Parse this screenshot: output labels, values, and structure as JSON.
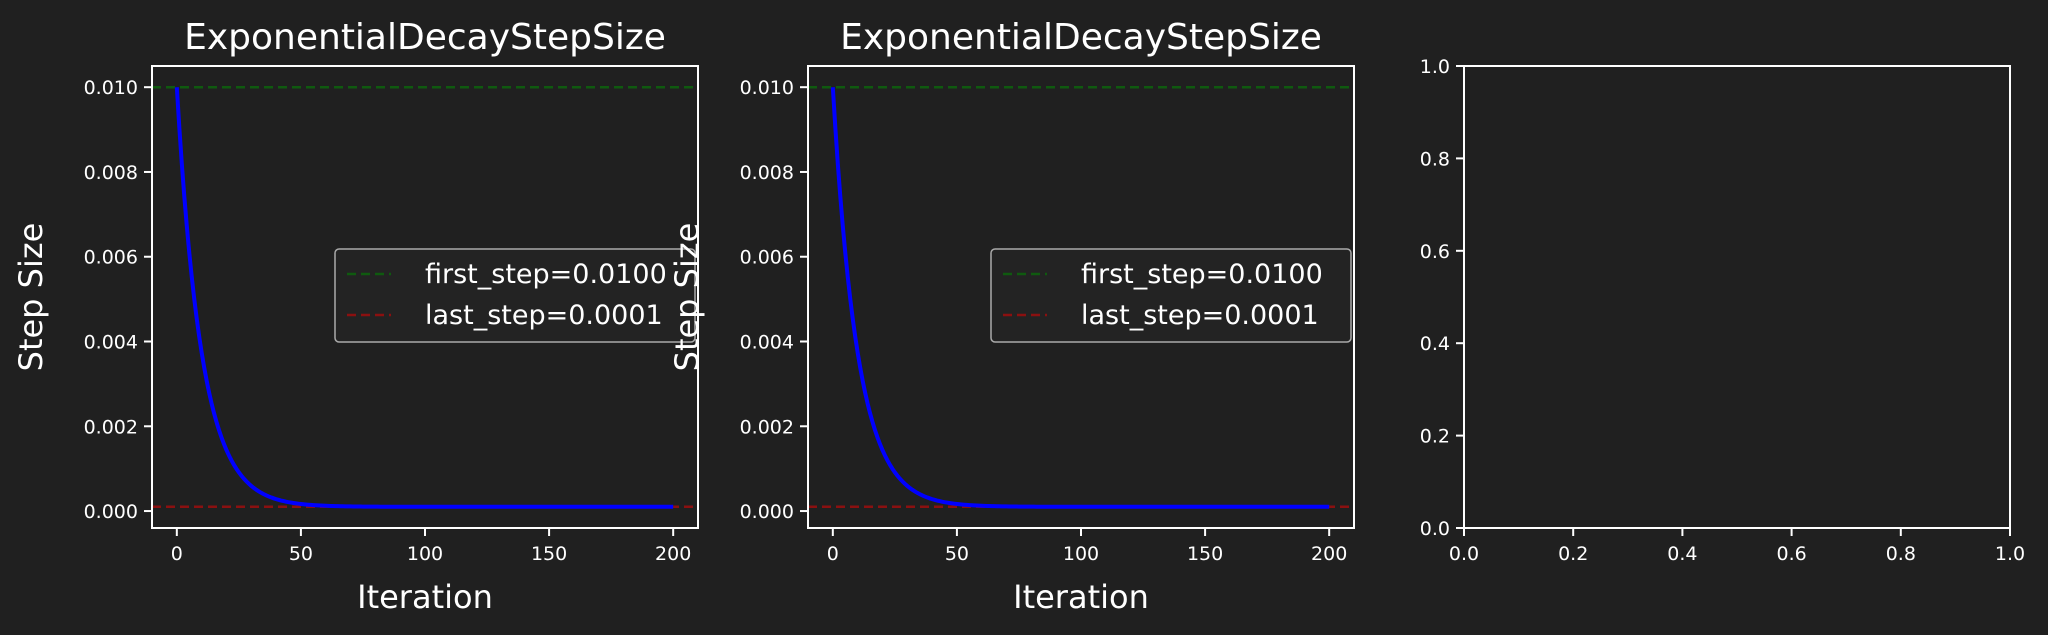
{
  "colors": {
    "background": "#202020",
    "axes": "#ffffff",
    "curve": "#0000ff",
    "first_line": "#0f5a0f",
    "last_line": "#8b1010",
    "legend_bg": "#232323",
    "legend_border": "#aaaaaa"
  },
  "chart_data": [
    {
      "type": "line",
      "title": "ExponentialDecayStepSize",
      "xlabel": "Iteration",
      "ylabel": "Step Size",
      "xlim": [
        -10,
        210
      ],
      "ylim": [
        -0.0004,
        0.0105
      ],
      "xticks": [
        0,
        50,
        100,
        150,
        200
      ],
      "xtick_labels": [
        "0",
        "50",
        "100",
        "150",
        "200"
      ],
      "yticks": [
        0.0,
        0.002,
        0.004,
        0.006,
        0.008,
        0.01
      ],
      "ytick_labels": [
        "0.000",
        "0.002",
        "0.004",
        "0.006",
        "0.008",
        "0.010"
      ],
      "series": [
        {
          "kind": "exponential_decay",
          "x_range": [
            0,
            200
          ],
          "first_step": 0.01,
          "last_step": 0.0001,
          "decay_rate": 0.1,
          "color": "#0000ff"
        }
      ],
      "hlines": [
        {
          "name": "first_step=0.0100",
          "y": 0.01,
          "color": "#0f5a0f",
          "style": "dashed"
        },
        {
          "name": "last_step=0.0001",
          "y": 0.0001,
          "color": "#8b1010",
          "style": "dashed"
        }
      ],
      "legend": {
        "placement": "center-right",
        "entries": [
          "first_step=0.0100",
          "last_step=0.0001"
        ]
      }
    },
    {
      "type": "line",
      "title": "ExponentialDecayStepSize",
      "xlabel": "Iteration",
      "ylabel": "Step Size",
      "xlim": [
        -10,
        210
      ],
      "ylim": [
        -0.0004,
        0.0105
      ],
      "xticks": [
        0,
        50,
        100,
        150,
        200
      ],
      "xtick_labels": [
        "0",
        "50",
        "100",
        "150",
        "200"
      ],
      "yticks": [
        0.0,
        0.002,
        0.004,
        0.006,
        0.008,
        0.01
      ],
      "ytick_labels": [
        "0.000",
        "0.002",
        "0.004",
        "0.006",
        "0.008",
        "0.010"
      ],
      "series": [
        {
          "kind": "exponential_decay",
          "x_range": [
            0,
            200
          ],
          "first_step": 0.01,
          "last_step": 0.0001,
          "decay_rate": 0.1,
          "color": "#0000ff"
        }
      ],
      "hlines": [
        {
          "name": "first_step=0.0100",
          "y": 0.01,
          "color": "#0f5a0f",
          "style": "dashed"
        },
        {
          "name": "last_step=0.0001",
          "y": 0.0001,
          "color": "#8b1010",
          "style": "dashed"
        }
      ],
      "legend": {
        "placement": "center-right",
        "entries": [
          "first_step=0.0100",
          "last_step=0.0001"
        ]
      }
    },
    {
      "type": "line",
      "title": "",
      "xlabel": "",
      "ylabel": "",
      "xlim": [
        0,
        1
      ],
      "ylim": [
        0,
        1
      ],
      "xticks": [
        0,
        0.2,
        0.4,
        0.6,
        0.8,
        1.0
      ],
      "xtick_labels": [
        "0.0",
        "0.2",
        "0.4",
        "0.6",
        "0.8",
        "1.0"
      ],
      "yticks": [
        0,
        0.2,
        0.4,
        0.6,
        0.8,
        1.0
      ],
      "ytick_labels": [
        "0.0",
        "0.2",
        "0.4",
        "0.6",
        "0.8",
        "1.0"
      ],
      "series": [],
      "hlines": [],
      "legend": null
    }
  ]
}
